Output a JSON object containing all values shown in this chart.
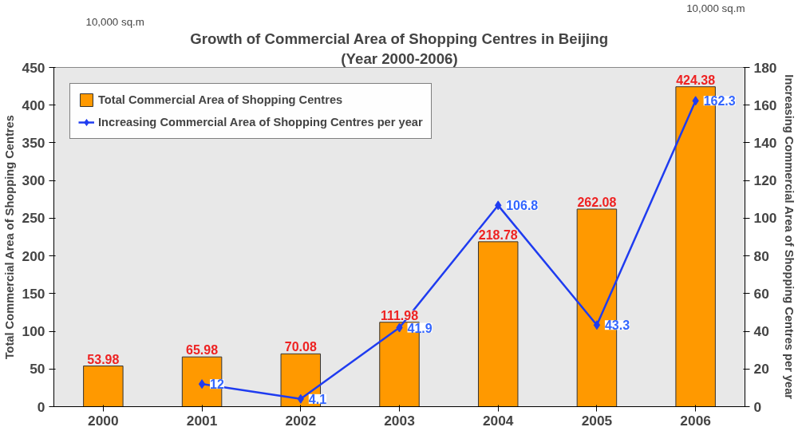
{
  "chart_data": {
    "type": "bar",
    "title": "Growth of Commercial Area of Shopping Centres in Beijing",
    "subtitle": "(Year 2000-2006)",
    "categories": [
      "2000",
      "2001",
      "2002",
      "2003",
      "2004",
      "2005",
      "2006"
    ],
    "ylabel": "Total Commercial Area of Shopping Centres",
    "y2label": "Increasing Commercial Area of Shopping Centres per year",
    "series": [
      {
        "name": "Total Commercial Area of Shopping Centres",
        "color": "#ff9900",
        "values": [
          53.98,
          65.98,
          70.08,
          111.98,
          218.78,
          262.08,
          424.38
        ]
      },
      {
        "name": "Increasing Commercial Area of Shopping Centres per year",
        "type": "line",
        "axis": "y2",
        "color": "#1f3cf0",
        "marker": "diamond",
        "values": [
          null,
          12,
          4.1,
          41.9,
          106.8,
          43.3,
          162.3
        ]
      }
    ],
    "ylim": [
      0,
      450
    ],
    "yticks": [
      0,
      50,
      100,
      150,
      200,
      250,
      300,
      350,
      400,
      450
    ],
    "y2lim": [
      0,
      180
    ],
    "y2ticks": [
      0,
      20,
      40,
      60,
      80,
      100,
      120,
      140,
      160,
      180
    ],
    "annotations": [
      "10,000 sq.m",
      "10,000 sq.m"
    ],
    "data_labels": true,
    "legend": "top left",
    "grid": false
  }
}
